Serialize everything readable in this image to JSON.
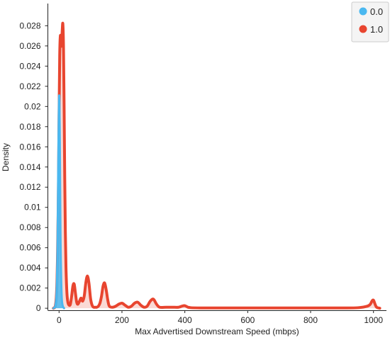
{
  "chart_data": {
    "type": "area",
    "xlabel": "Max Advertised Downstream Speed (mbps)",
    "ylabel": "Density",
    "xlim": [
      -30,
      1030
    ],
    "ylim": [
      -0.0002,
      0.0295
    ],
    "x_ticks": [
      0,
      200,
      400,
      600,
      800,
      1000
    ],
    "y_ticks": [
      0,
      0.002,
      0.004,
      0.006,
      0.008,
      0.01,
      0.012,
      0.014,
      0.016,
      0.018,
      0.02,
      0.022,
      0.024,
      0.026,
      0.028
    ],
    "y_tick_labels": [
      "0",
      "0.002",
      "0.004",
      "0.006",
      "0.008",
      "0.01",
      "0.012",
      "0.014",
      "0.016",
      "0.018",
      "0.02",
      "0.022",
      "0.024",
      "0.026",
      "0.028"
    ],
    "legend_position": "top-right",
    "series": [
      {
        "name": "0.0",
        "color": "#4ab8f0",
        "x": [
          -18,
          -12,
          -8,
          -5,
          -3,
          -1,
          0,
          1,
          2,
          3,
          4,
          5,
          7,
          9,
          12,
          16
        ],
        "y": [
          0,
          0.0002,
          0.0015,
          0.006,
          0.013,
          0.019,
          0.021,
          0.0205,
          0.018,
          0.014,
          0.0095,
          0.006,
          0.0025,
          0.0008,
          0.0002,
          0
        ]
      },
      {
        "name": "1.0",
        "color": "#e8452f",
        "x": [
          -18,
          -12,
          -8,
          -5,
          -2,
          0,
          2,
          4,
          6,
          8,
          10,
          12,
          14,
          16,
          18,
          20,
          22,
          25,
          28,
          32,
          36,
          40,
          44,
          48,
          52,
          56,
          60,
          65,
          70,
          75,
          80,
          85,
          90,
          95,
          100,
          105,
          110,
          115,
          120,
          125,
          130,
          135,
          140,
          145,
          150,
          155,
          160,
          170,
          180,
          190,
          200,
          210,
          220,
          230,
          240,
          250,
          260,
          270,
          280,
          290,
          300,
          310,
          320,
          340,
          360,
          380,
          390,
          400,
          410,
          420,
          450,
          500,
          550,
          600,
          650,
          700,
          750,
          800,
          850,
          900,
          950,
          980,
          990,
          995,
          1000,
          1005,
          1010,
          1020
        ],
        "y": [
          0,
          0.0002,
          0.0015,
          0.005,
          0.012,
          0.019,
          0.025,
          0.027,
          0.0265,
          0.026,
          0.0275,
          0.0282,
          0.026,
          0.02,
          0.013,
          0.0075,
          0.004,
          0.0015,
          0.0006,
          0.0003,
          0.0004,
          0.0012,
          0.0022,
          0.0024,
          0.0015,
          0.0006,
          0.0004,
          0.0007,
          0.001,
          0.0007,
          0.0012,
          0.0025,
          0.0032,
          0.0025,
          0.001,
          0.0003,
          0.0001,
          0.0001,
          0.0001,
          0.0002,
          0.0005,
          0.0012,
          0.0022,
          0.0025,
          0.0018,
          0.0008,
          0.0002,
          0.0001,
          0.0002,
          0.0004,
          0.0005,
          0.0003,
          0.0001,
          0.0002,
          0.0005,
          0.0006,
          0.0003,
          0.0001,
          0.0002,
          0.0007,
          0.0009,
          0.0004,
          0.0001,
          0.0001,
          0.0001,
          0.0001,
          0.0002,
          0.00025,
          0.0001,
          5e-05,
          3e-05,
          3e-05,
          3e-05,
          3e-05,
          3e-05,
          3e-05,
          3e-05,
          3e-05,
          3e-05,
          3e-05,
          5e-05,
          0.0002,
          0.0004,
          0.0007,
          0.0008,
          0.0004,
          0.0001,
          0
        ]
      }
    ]
  }
}
